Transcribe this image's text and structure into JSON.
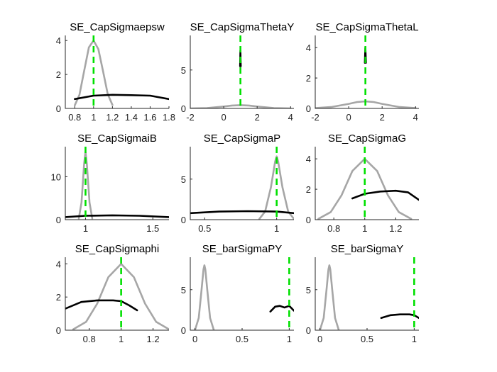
{
  "colors": {
    "prior": "#a6a6a6",
    "posterior": "#000000",
    "mode": "#00e000"
  },
  "chart_data": [
    {
      "type": "line",
      "title": "SE_CapSigmaepsw",
      "xlim": [
        0.7,
        1.8
      ],
      "ylim": [
        0,
        4.3
      ],
      "xticks": [
        0.8,
        1,
        1.2,
        1.4,
        1.6,
        1.8
      ],
      "xtick_labels": [
        "0.8",
        "1",
        "1.2",
        "1.4",
        "1.6",
        "1.8"
      ],
      "yticks": [
        0,
        2,
        4
      ],
      "ytick_labels": [
        "0",
        "2",
        "4"
      ],
      "mode_line": 1.0,
      "series": [
        {
          "role": "prior",
          "x": [
            0.8,
            0.85,
            0.9,
            0.95,
            1.0,
            1.05,
            1.1,
            1.15,
            1.2
          ],
          "y": [
            0.18,
            0.8,
            2.2,
            3.6,
            4.0,
            3.5,
            2.2,
            0.85,
            0.2
          ]
        },
        {
          "role": "posterior",
          "x": [
            0.8,
            1.0,
            1.2,
            1.4,
            1.6,
            1.8
          ],
          "y": [
            0.55,
            0.75,
            0.8,
            0.78,
            0.75,
            0.55
          ]
        }
      ]
    },
    {
      "type": "line",
      "title": "SE_CapSigmaThetaY",
      "xlim": [
        -2,
        4.2
      ],
      "ylim": [
        0,
        9.5
      ],
      "xticks": [
        -2,
        0,
        2,
        4
      ],
      "xtick_labels": [
        "-2",
        "0",
        "2",
        "4"
      ],
      "yticks": [
        0,
        5
      ],
      "ytick_labels": [
        "0",
        "5"
      ],
      "mode_line": 1.0,
      "series": [
        {
          "role": "prior",
          "x": [
            -2,
            -1,
            0,
            0.5,
            1.0,
            1.5,
            2,
            3,
            4
          ],
          "y": [
            0.0,
            0.05,
            0.25,
            0.38,
            0.42,
            0.38,
            0.25,
            0.05,
            0.0
          ]
        },
        {
          "role": "posterior",
          "x": [
            0.98,
            1.0,
            1.02
          ],
          "y": [
            5.5,
            7.5,
            5.5
          ]
        }
      ]
    },
    {
      "type": "line",
      "title": "SE_CapSigmaThetaL",
      "xlim": [
        -2,
        4.2
      ],
      "ylim": [
        0,
        4.8
      ],
      "xticks": [
        -2,
        0,
        2,
        4
      ],
      "xtick_labels": [
        "-2",
        "0",
        "2",
        "4"
      ],
      "yticks": [
        0,
        2,
        4
      ],
      "ytick_labels": [
        "0",
        "2",
        "4"
      ],
      "mode_line": 1.0,
      "series": [
        {
          "role": "prior",
          "x": [
            -2,
            -1,
            0,
            0.5,
            1.0,
            1.5,
            2,
            3,
            4
          ],
          "y": [
            0.02,
            0.1,
            0.3,
            0.42,
            0.46,
            0.42,
            0.3,
            0.1,
            0.02
          ]
        },
        {
          "role": "posterior",
          "x": [
            0.97,
            1.0,
            1.03
          ],
          "y": [
            3.0,
            4.0,
            3.0
          ]
        }
      ]
    },
    {
      "type": "line",
      "title": "SE_CapSigmaiB",
      "xlim": [
        0.85,
        1.62
      ],
      "ylim": [
        0,
        17
      ],
      "xticks": [
        1,
        1.5
      ],
      "xtick_labels": [
        "1",
        "1.5"
      ],
      "yticks": [
        0,
        10
      ],
      "ytick_labels": [
        "0",
        "10"
      ],
      "mode_line": 1.0,
      "series": [
        {
          "role": "prior",
          "x": [
            0.95,
            0.97,
            0.99,
            1.0,
            1.01,
            1.03,
            1.05
          ],
          "y": [
            0.3,
            4.0,
            13.0,
            15.8,
            13.0,
            4.0,
            0.3
          ]
        },
        {
          "role": "posterior",
          "x": [
            0.85,
            1.0,
            1.2,
            1.4,
            1.62
          ],
          "y": [
            0.6,
            0.9,
            1.0,
            0.9,
            0.6
          ]
        }
      ]
    },
    {
      "type": "line",
      "title": "SE_CapSigmaP",
      "xlim": [
        0.4,
        1.12
      ],
      "ylim": [
        0,
        9
      ],
      "xticks": [
        0.5,
        1
      ],
      "xtick_labels": [
        "0.5",
        "1"
      ],
      "yticks": [
        0,
        5
      ],
      "ytick_labels": [
        "0",
        "5"
      ],
      "mode_line": 1.0,
      "series": [
        {
          "role": "prior",
          "x": [
            0.88,
            0.92,
            0.96,
            0.99,
            1.0,
            1.01,
            1.04,
            1.08,
            1.12
          ],
          "y": [
            0.1,
            1.0,
            4.0,
            7.2,
            7.8,
            7.2,
            4.0,
            1.0,
            0.1
          ]
        },
        {
          "role": "posterior",
          "x": [
            0.4,
            0.6,
            0.8,
            1.0,
            1.12
          ],
          "y": [
            0.8,
            1.0,
            1.05,
            1.0,
            0.8
          ]
        }
      ]
    },
    {
      "type": "line",
      "title": "SE_CapSigmaG",
      "xlim": [
        0.68,
        1.35
      ],
      "ylim": [
        0,
        4.8
      ],
      "xticks": [
        0.8,
        1,
        1.2
      ],
      "xtick_labels": [
        "0.8",
        "1",
        "1.2"
      ],
      "yticks": [
        0,
        2,
        4
      ],
      "ytick_labels": [
        "0",
        "2",
        "4"
      ],
      "mode_line": 1.0,
      "series": [
        {
          "role": "prior",
          "x": [
            0.7,
            0.78,
            0.85,
            0.92,
            1.0,
            1.08,
            1.15,
            1.22,
            1.3
          ],
          "y": [
            0.05,
            0.5,
            1.6,
            3.2,
            4.0,
            3.2,
            1.6,
            0.5,
            0.05
          ]
        },
        {
          "role": "posterior",
          "x": [
            0.92,
            1.0,
            1.1,
            1.2,
            1.28,
            1.35
          ],
          "y": [
            1.4,
            1.7,
            1.85,
            1.9,
            1.8,
            1.3
          ]
        }
      ]
    },
    {
      "type": "line",
      "title": "SE_CapSigmaphi",
      "xlim": [
        0.65,
        1.3
      ],
      "ylim": [
        0,
        4.4
      ],
      "xticks": [
        0.8,
        1,
        1.2
      ],
      "xtick_labels": [
        "0.8",
        "1",
        "1.2"
      ],
      "yticks": [
        0,
        2,
        4
      ],
      "ytick_labels": [
        "0",
        "2",
        "4"
      ],
      "mode_line": 1.0,
      "series": [
        {
          "role": "prior",
          "x": [
            0.7,
            0.78,
            0.85,
            0.92,
            1.0,
            1.08,
            1.15,
            1.22,
            1.3
          ],
          "y": [
            0.05,
            0.5,
            1.6,
            3.2,
            4.0,
            3.2,
            1.6,
            0.5,
            0.05
          ]
        },
        {
          "role": "posterior",
          "x": [
            0.65,
            0.75,
            0.85,
            0.95,
            1.0,
            1.05,
            1.1
          ],
          "y": [
            1.3,
            1.7,
            1.8,
            1.8,
            1.75,
            1.5,
            1.2
          ]
        }
      ]
    },
    {
      "type": "line",
      "title": "SE_barSigmaPY",
      "xlim": [
        -0.05,
        1.05
      ],
      "ylim": [
        0,
        9
      ],
      "xticks": [
        0,
        0.5,
        1
      ],
      "xtick_labels": [
        "0",
        "0.5",
        "1"
      ],
      "yticks": [
        0,
        5
      ],
      "ytick_labels": [
        "0",
        "5"
      ],
      "mode_line": 1.0,
      "series": [
        {
          "role": "prior",
          "x": [
            0.0,
            0.04,
            0.07,
            0.09,
            0.1,
            0.11,
            0.13,
            0.16,
            0.2
          ],
          "y": [
            0.0,
            1.5,
            5.0,
            7.5,
            8.0,
            7.5,
            5.0,
            1.5,
            0.0
          ]
        },
        {
          "role": "posterior",
          "x": [
            0.8,
            0.85,
            0.9,
            0.95,
            1.0,
            1.05
          ],
          "y": [
            2.3,
            2.9,
            3.0,
            2.8,
            3.0,
            2.4
          ]
        }
      ]
    },
    {
      "type": "line",
      "title": "SE_barSigmaY",
      "xlim": [
        -0.05,
        1.05
      ],
      "ylim": [
        0,
        9
      ],
      "xticks": [
        0,
        0.5,
        1
      ],
      "xtick_labels": [
        "0",
        "0.5",
        "1"
      ],
      "yticks": [
        0,
        5
      ],
      "ytick_labels": [
        "0",
        "5"
      ],
      "mode_line": 1.0,
      "series": [
        {
          "role": "prior",
          "x": [
            0.0,
            0.04,
            0.07,
            0.09,
            0.1,
            0.11,
            0.13,
            0.16,
            0.2
          ],
          "y": [
            0.0,
            1.5,
            5.0,
            7.5,
            8.0,
            7.5,
            5.0,
            1.5,
            0.0
          ]
        },
        {
          "role": "posterior",
          "x": [
            0.65,
            0.75,
            0.85,
            0.95,
            1.0,
            1.05
          ],
          "y": [
            1.5,
            1.85,
            1.95,
            1.95,
            1.85,
            1.5
          ]
        }
      ]
    }
  ]
}
